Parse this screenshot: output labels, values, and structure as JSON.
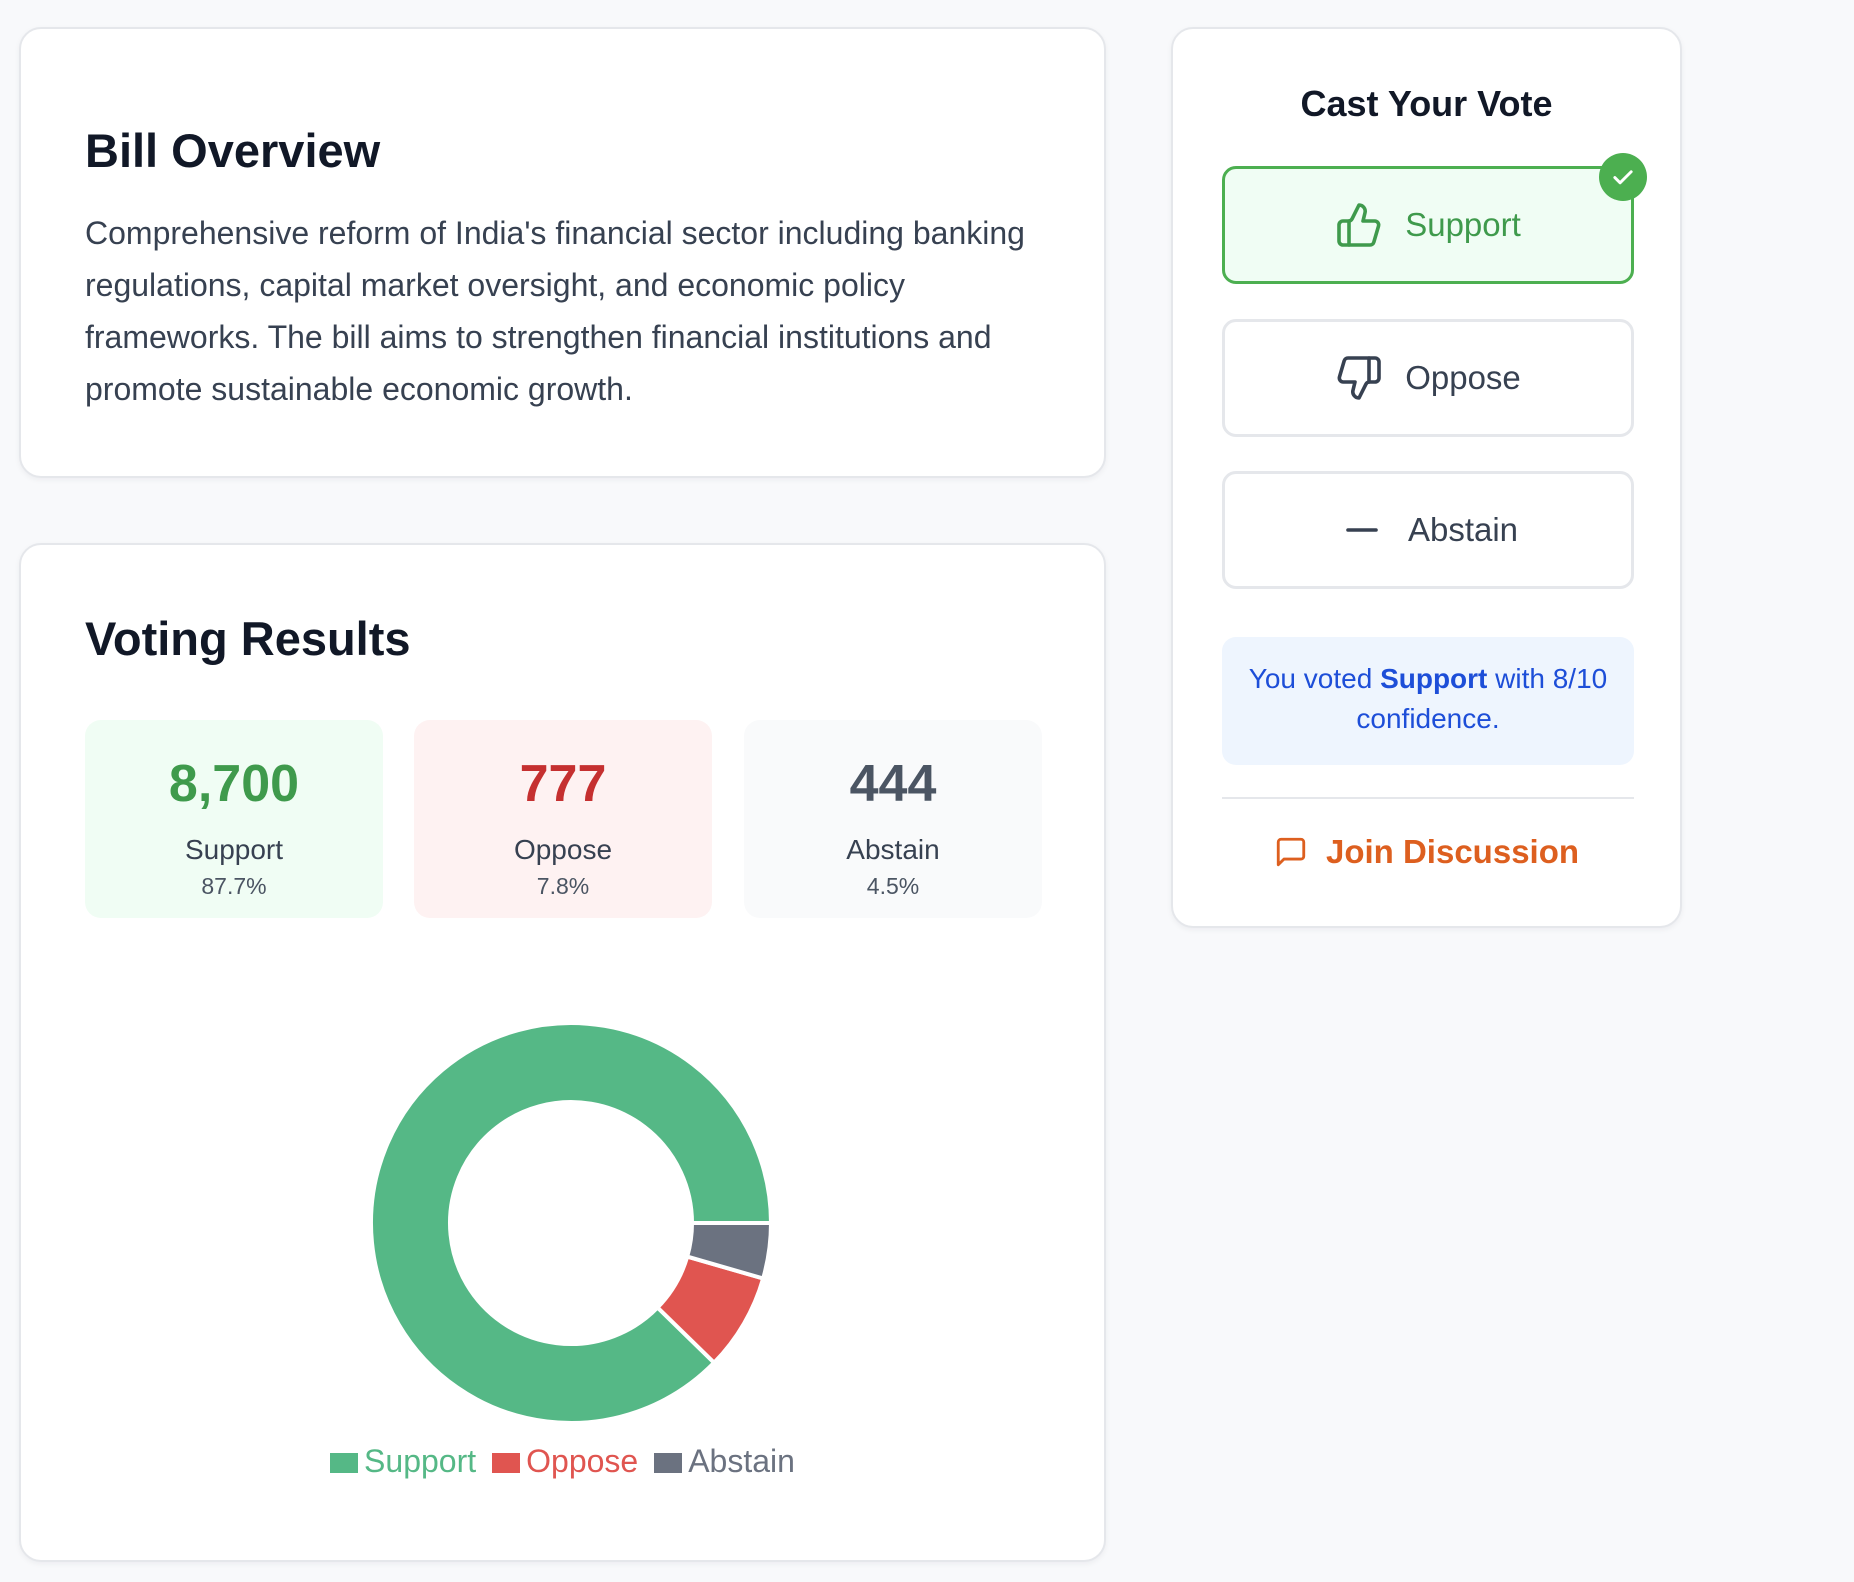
{
  "overview": {
    "title": "Bill Overview",
    "description": "Comprehensive reform of India's financial sector including banking regulations, capital market oversight, and economic policy frameworks. The bill aims to strengthen financial institutions and promote sustainable economic growth."
  },
  "results": {
    "title": "Voting Results",
    "stats": [
      {
        "value": "8,700",
        "label": "Support",
        "percent": "87.7%"
      },
      {
        "value": "777",
        "label": "Oppose",
        "percent": "7.8%"
      },
      {
        "value": "444",
        "label": "Abstain",
        "percent": "4.5%"
      }
    ]
  },
  "chart_data": {
    "type": "pie",
    "categories": [
      "Support",
      "Oppose",
      "Abstain"
    ],
    "values": [
      8700,
      777,
      444
    ],
    "colors": [
      "#55b886",
      "#e05550",
      "#6b7280"
    ],
    "legend": "bottom"
  },
  "vote": {
    "title": "Cast Your Vote",
    "options": [
      {
        "label": "Support",
        "icon": "thumbs-up-icon",
        "selected": true
      },
      {
        "label": "Oppose",
        "icon": "thumbs-down-icon",
        "selected": false
      },
      {
        "label": "Abstain",
        "icon": "minus-icon",
        "selected": false
      }
    ],
    "status": {
      "prefix": "You voted",
      "choice": "Support",
      "suffix": "with 8/10 confidence."
    },
    "discussion_label": "Join Discussion"
  },
  "colors": {
    "support": "#3f9a4c",
    "oppose": "#c53030",
    "abstain": "#4b5563",
    "accent_blue": "#1d4ed8",
    "accent_orange": "#dd5f1f"
  }
}
